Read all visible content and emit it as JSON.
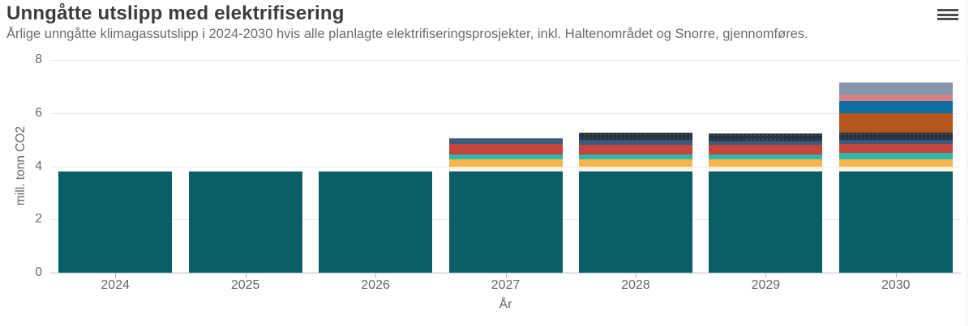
{
  "header": {
    "title": "Unngåtte utslipp med elektrifisering",
    "subtitle": "Årlige unngåtte klimagassutslipp i 2024-2030 hvis alle planlagte elektrifiseringsprosjekter, inkl. Haltenområdet og Snorre, gjennomføres.",
    "menu_icon": "hamburger-icon"
  },
  "chart_data": {
    "type": "bar",
    "stacked": true,
    "title": "Unngåtte utslipp med elektrifisering",
    "subtitle": "Årlige unngåtte klimagassutslipp i 2024-2030 hvis alle planlagte elektrifiseringsprosjekter, inkl. Haltenområdet og Snorre, gjennomføres.",
    "xlabel": "År",
    "ylabel": "mill. tonn CO2",
    "ylim": [
      0,
      8
    ],
    "yticks": [
      0,
      2,
      4,
      6,
      8
    ],
    "grid": true,
    "legend": "none",
    "categories": [
      "2024",
      "2025",
      "2026",
      "2027",
      "2028",
      "2029",
      "2030"
    ],
    "series": [
      {
        "name": "teal-base",
        "color": "#0a5e67",
        "pattern": false,
        "values": [
          3.8,
          3.8,
          3.8,
          3.8,
          3.8,
          3.8,
          3.8
        ]
      },
      {
        "name": "cream",
        "color": "#f8f1dd",
        "pattern": false,
        "values": [
          0,
          0,
          0,
          0.2,
          0.2,
          0.2,
          0.2
        ]
      },
      {
        "name": "orange",
        "color": "#fbb44c",
        "pattern": false,
        "values": [
          0,
          0,
          0,
          0.25,
          0.25,
          0.25,
          0.25
        ]
      },
      {
        "name": "turquoise",
        "color": "#2eb9ac",
        "pattern": false,
        "values": [
          0,
          0,
          0,
          0.2,
          0.2,
          0.2,
          0.25
        ]
      },
      {
        "name": "red",
        "color": "#c5443e",
        "pattern": false,
        "values": [
          0,
          0,
          0,
          0.4,
          0.35,
          0.35,
          0.35
        ]
      },
      {
        "name": "navy",
        "color": "#3a5a7e",
        "pattern": false,
        "values": [
          0,
          0,
          0,
          0.2,
          0.18,
          0.17,
          0.15
        ]
      },
      {
        "name": "charcoal",
        "color": "#27333d",
        "pattern": true,
        "values": [
          0,
          0,
          0,
          0,
          0.27,
          0.27,
          0.25
        ]
      },
      {
        "name": "brown",
        "color": "#b4571c",
        "pattern": false,
        "values": [
          0,
          0,
          0,
          0,
          0,
          0,
          0.75
        ]
      },
      {
        "name": "blue",
        "color": "#0e6f9f",
        "pattern": false,
        "values": [
          0,
          0,
          0,
          0,
          0,
          0,
          0.45
        ]
      },
      {
        "name": "salmon",
        "color": "#db8083",
        "pattern": false,
        "values": [
          0,
          0,
          0,
          0,
          0,
          0,
          0.25
        ]
      },
      {
        "name": "gray-blue",
        "color": "#8497ab",
        "pattern": false,
        "values": [
          0,
          0,
          0,
          0,
          0,
          0,
          0.45
        ]
      }
    ],
    "stack_totals": [
      3.8,
      3.8,
      3.8,
      5.05,
      5.25,
      5.24,
      7.15
    ]
  },
  "colors": {
    "title_text": "#3c3c3c",
    "subtitle_text": "#6b6b6b",
    "axis_text": "#666666",
    "gridline": "#e7e7e7",
    "axis_line": "#b9b9b9",
    "background": "#ffffff"
  }
}
